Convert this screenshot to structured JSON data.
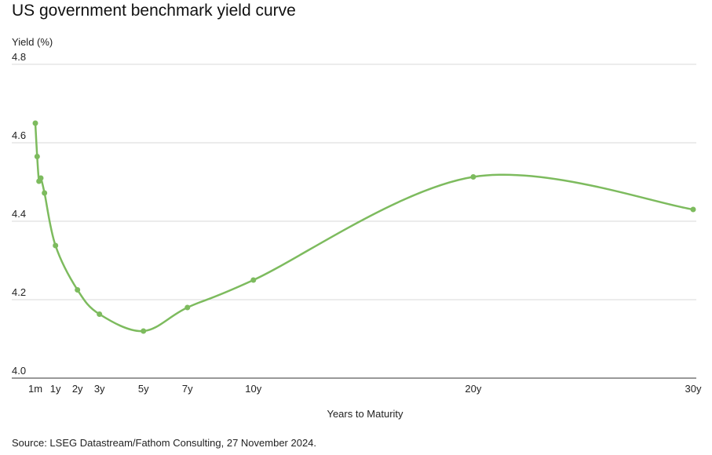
{
  "title": "US government benchmark yield curve",
  "source": "Source: LSEG Datastream/Fathom Consulting, 27 November 2024.",
  "colors": {
    "line": "#7dbb5e",
    "grid": "#d9d9d9",
    "axis": "#333333"
  },
  "chart_data": {
    "type": "line",
    "title": "US government benchmark yield curve",
    "xlabel": "Years to Maturity",
    "ylabel": "Yield (%)",
    "ylim": [
      4.0,
      4.8
    ],
    "xlim": [
      0.0833,
      30
    ],
    "y_ticks": [
      4.0,
      4.2,
      4.4,
      4.6,
      4.8
    ],
    "y_tick_labels": [
      "4.0",
      "4.2",
      "4.4",
      "4.6",
      "4.8"
    ],
    "x_ticks": [
      0.0833,
      1,
      2,
      3,
      5,
      7,
      10,
      20,
      30
    ],
    "x_tick_labels": [
      "1m",
      "1y",
      "2y",
      "3y",
      "5y",
      "7y",
      "10y",
      "20y",
      "30y"
    ],
    "grid": true,
    "series": [
      {
        "x": [
          0.0833,
          0.1667,
          0.25,
          0.3333,
          0.5,
          1,
          2,
          3,
          5,
          7,
          10,
          20,
          30
        ],
        "y": [
          4.65,
          4.565,
          4.502,
          4.51,
          4.472,
          4.338,
          4.225,
          4.163,
          4.12,
          4.18,
          4.25,
          4.513,
          4.43
        ]
      }
    ]
  }
}
